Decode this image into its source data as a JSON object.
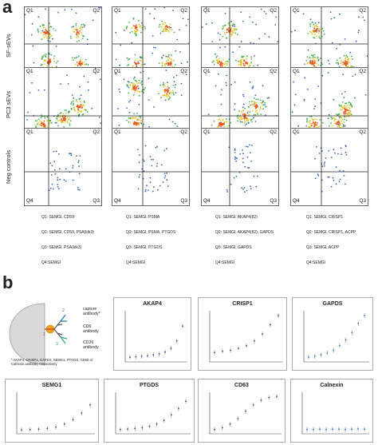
{
  "panel_a": {
    "letter": "a",
    "row_labels": [
      "SF-sEVs",
      "PC3 sEVs",
      "Neg controls"
    ],
    "quadrant_labels": [
      "Q1",
      "Q2",
      "Q3",
      "Q4"
    ],
    "legends": [
      [
        "Q1: SEMGl, CD59",
        "Q2: SEMGl, CD59, PSA(klk3)",
        "Q3: SEMGl, PSA(klk3)",
        "Q4:SEMGl"
      ],
      [
        "Q1: SEMGl, PSMA",
        "Q2: SEMGl, PSMA, PTGDS",
        "Q3: SEMGl, PTGDS",
        "Q4:SEMGl"
      ],
      [
        "Q1: SEMGl, AKAP4(82)",
        "Q2: SEMGl, AKAP4(82), GAPDS",
        "Q3: SEMGl, GAPDS",
        "Q4:SEMGl"
      ],
      [
        "Q1: SEMGl, CRISP1",
        "Q2: SEMGl, CRISP1, ACPP",
        "Q3: SEMGl, ACPP",
        "Q4:SEMGl"
      ]
    ]
  },
  "panel_b": {
    "letter": "b",
    "diagram": {
      "labels": {
        "capture": "capture antibody*",
        "cd9": "CD9 antibody",
        "cd26": "CD26 antibody",
        "n1": "1",
        "n2": "2",
        "n3": "3"
      },
      "footnote": "* AKAP4, CRISP1, GAPDS, SEMG1, PTGDS, CD63 or Calnexin antibody, respectively"
    },
    "colors": {
      "points": "#3a3a8c",
      "blue_points": "#2a6fdb"
    }
  },
  "chart_data": [
    {
      "type": "scatter",
      "title": "AKAP4",
      "values": [
        0.05,
        0.06,
        0.07,
        0.08,
        0.1,
        0.12,
        0.16,
        0.24,
        0.4,
        0.72
      ]
    },
    {
      "type": "scatter",
      "title": "CRISP1",
      "values": [
        0.15,
        0.18,
        0.2,
        0.24,
        0.3,
        0.4,
        0.55,
        0.75,
        0.95
      ]
    },
    {
      "type": "scatter",
      "title": "GAPDS",
      "values": [
        0.05,
        0.07,
        0.1,
        0.14,
        0.2,
        0.3,
        0.42,
        0.58,
        0.78,
        0.95
      ]
    },
    {
      "type": "scatter",
      "title": "SEMG1",
      "values": [
        0.04,
        0.05,
        0.06,
        0.08,
        0.12,
        0.2,
        0.32,
        0.5,
        0.72
      ]
    },
    {
      "type": "scatter",
      "title": "PTGDS",
      "values": [
        0.05,
        0.06,
        0.08,
        0.1,
        0.14,
        0.2,
        0.3,
        0.45,
        0.62,
        0.82
      ]
    },
    {
      "type": "scatter",
      "title": "CD63",
      "values": [
        0.05,
        0.1,
        0.2,
        0.35,
        0.55,
        0.72,
        0.85,
        0.92,
        0.95
      ]
    },
    {
      "type": "scatter",
      "title": "Calnexin",
      "values": [
        0.05,
        0.05,
        0.06,
        0.05,
        0.06,
        0.06,
        0.05,
        0.06,
        0.07,
        0.06
      ]
    }
  ]
}
